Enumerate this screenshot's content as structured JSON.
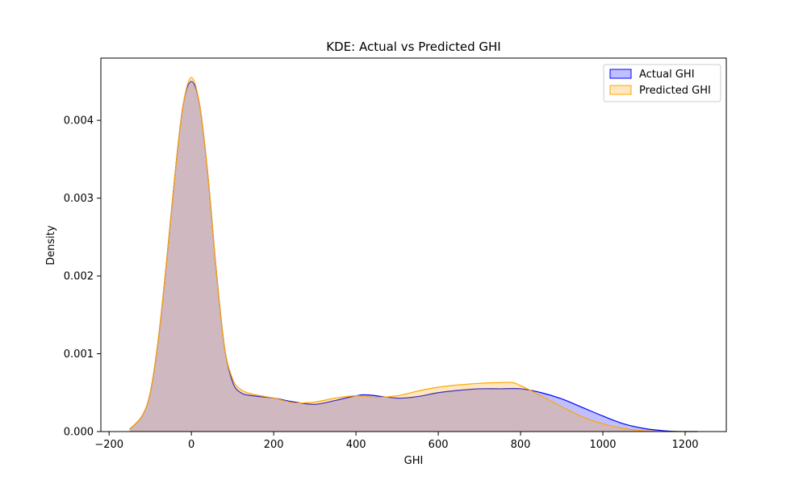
{
  "chart_data": {
    "type": "area",
    "title": "KDE: Actual vs Predicted GHI",
    "xlabel": "GHI",
    "ylabel": "Density",
    "xlim": [
      -220,
      1300
    ],
    "ylim": [
      0,
      0.0048
    ],
    "xticks": [
      -200,
      0,
      200,
      400,
      600,
      800,
      1000,
      1200
    ],
    "xtick_labels": [
      "−200",
      "0",
      "200",
      "400",
      "600",
      "800",
      "1000",
      "1200"
    ],
    "yticks": [
      0,
      0.001,
      0.002,
      0.003,
      0.004
    ],
    "ytick_labels": [
      "0.000",
      "0.001",
      "0.002",
      "0.003",
      "0.004"
    ],
    "grid": false,
    "legend_position": "top-right",
    "series": [
      {
        "name": "Actual GHI",
        "color": "#0000ff",
        "fill": "#b3b3f0",
        "x": [
          -150,
          -120,
          -100,
          -80,
          -60,
          -40,
          -20,
          0,
          20,
          40,
          60,
          80,
          100,
          120,
          150,
          200,
          250,
          300,
          350,
          400,
          430,
          500,
          550,
          600,
          650,
          700,
          750,
          800,
          850,
          900,
          950,
          1000,
          1050,
          1100,
          1150,
          1200,
          1230
        ],
        "y": [
          3e-05,
          0.0002,
          0.0005,
          0.0012,
          0.0022,
          0.0033,
          0.0042,
          0.0045,
          0.0042,
          0.0033,
          0.0021,
          0.0011,
          0.00064,
          0.0005,
          0.00046,
          0.00043,
          0.00038,
          0.00035,
          0.0004,
          0.00046,
          0.00047,
          0.00043,
          0.00045,
          0.0005,
          0.00053,
          0.00055,
          0.00055,
          0.00055,
          0.0005,
          0.00042,
          0.00031,
          0.0002,
          0.0001,
          4e-05,
          1e-05,
          0.0,
          0.0
        ]
      },
      {
        "name": "Predicted GHI",
        "color": "#ffa500",
        "fill": "#ffe0a8",
        "x": [
          -150,
          -120,
          -100,
          -80,
          -60,
          -40,
          -20,
          0,
          20,
          40,
          60,
          80,
          100,
          120,
          150,
          200,
          250,
          300,
          350,
          400,
          450,
          500,
          550,
          600,
          650,
          700,
          750,
          780,
          800,
          850,
          900,
          950,
          1000,
          1050,
          1100,
          1150,
          1200,
          1230
        ],
        "y": [
          3e-05,
          0.0002,
          0.0005,
          0.0012,
          0.0022,
          0.0033,
          0.0042,
          0.00455,
          0.0042,
          0.0033,
          0.0021,
          0.0011,
          0.00068,
          0.00054,
          0.00048,
          0.00043,
          0.00037,
          0.00038,
          0.00043,
          0.00046,
          0.00044,
          0.00046,
          0.00052,
          0.00057,
          0.0006,
          0.00062,
          0.00063,
          0.00063,
          0.00059,
          0.00046,
          0.00032,
          0.00019,
          0.0001,
          4e-05,
          1e-05,
          0.0,
          0.0,
          0.0
        ]
      }
    ]
  }
}
